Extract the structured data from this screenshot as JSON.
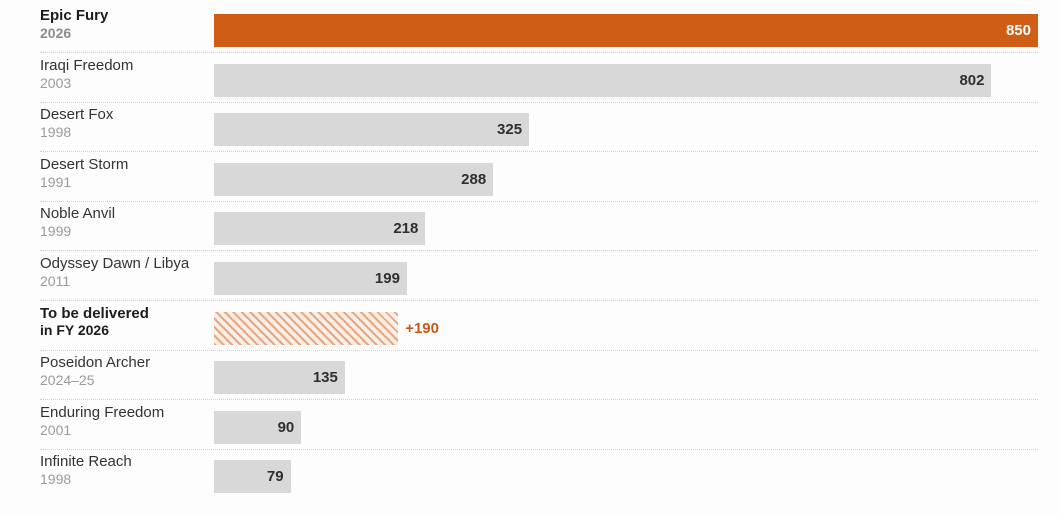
{
  "chart_data": {
    "type": "bar",
    "orientation": "horizontal",
    "title": "",
    "xlabel": "",
    "ylabel": "",
    "xlim": [
      0,
      850
    ],
    "grid": false,
    "legend": "none",
    "colors": {
      "highlight": "#cf5d16",
      "default": "#d8d8d9",
      "planned": "#e6a883",
      "planned_text": "#c6581a"
    },
    "categories": [
      {
        "name": "Epic Fury",
        "sub": "2026",
        "value": 850,
        "value_label": "850",
        "style": "highlight"
      },
      {
        "name": "Iraqi Freedom",
        "sub": "2003",
        "value": 802,
        "value_label": "802",
        "style": "default"
      },
      {
        "name": "Desert Fox",
        "sub": "1998",
        "value": 325,
        "value_label": "325",
        "style": "default"
      },
      {
        "name": "Desert Storm",
        "sub": "1991",
        "value": 288,
        "value_label": "288",
        "style": "default"
      },
      {
        "name": "Noble Anvil",
        "sub": "1999",
        "value": 218,
        "value_label": "218",
        "style": "default"
      },
      {
        "name": "Odyssey Dawn / Libya",
        "sub": "2011",
        "value": 199,
        "value_label": "199",
        "style": "default"
      },
      {
        "name": "To be delivered",
        "sub": "in FY 2026",
        "value": 190,
        "value_label": "+190",
        "style": "planned"
      },
      {
        "name": "Poseidon Archer",
        "sub": "2024–25",
        "value": 135,
        "value_label": "135",
        "style": "default"
      },
      {
        "name": "Enduring Freedom",
        "sub": "2001",
        "value": 90,
        "value_label": "90",
        "style": "default"
      },
      {
        "name": "Infinite Reach",
        "sub": "1998",
        "value": 79,
        "value_label": "79",
        "style": "default"
      }
    ]
  }
}
